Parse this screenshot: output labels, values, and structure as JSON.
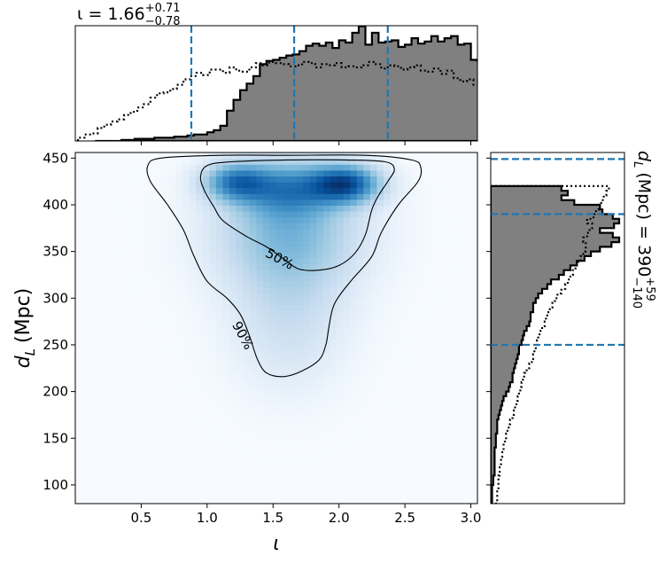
{
  "chart_data": [
    {
      "type": "histogram",
      "panel": "top-marginal",
      "title_text": "ι = 1.66",
      "title_value": "1.66",
      "title_upper": "+0.71",
      "title_lower": "−0.78",
      "x_variable": "ι",
      "xlim": [
        0.0,
        3.05
      ],
      "quantile_lines": [
        0.88,
        1.66,
        2.37
      ],
      "bin_edges_start": 0.15,
      "bin_width": 0.05,
      "posterior_counts": [
        0,
        0,
        0,
        0,
        1,
        1,
        2,
        2,
        2,
        3,
        3,
        3,
        4,
        4,
        5,
        6,
        6,
        8,
        10,
        14,
        28,
        38,
        47,
        53,
        60,
        71,
        74,
        75,
        77,
        79,
        80,
        83,
        88,
        90,
        88,
        91,
        86,
        93,
        91,
        100,
        106,
        89,
        100,
        91,
        92,
        93,
        87,
        89,
        95,
        90,
        92,
        97,
        92,
        95,
        97,
        89,
        90,
        75,
        74,
        56,
        56,
        46,
        46,
        44,
        30,
        33,
        31,
        28,
        23,
        21,
        17,
        14,
        11,
        9,
        7,
        4,
        3,
        2,
        1
      ],
      "prior_start": 0.02,
      "prior_counts": [
        3,
        6,
        7,
        12,
        15,
        18,
        20,
        24,
        27,
        31,
        34,
        40,
        44,
        45,
        48,
        52,
        57,
        60,
        63,
        61,
        66,
        66,
        63,
        68,
        65,
        64,
        68,
        72,
        70,
        73,
        72,
        71,
        69,
        70,
        73,
        72,
        68,
        71,
        70,
        72,
        68,
        69,
        68,
        70,
        73,
        71,
        67,
        70,
        69,
        66,
        68,
        70,
        65,
        64,
        67,
        62,
        65,
        58,
        55,
        57,
        52,
        55,
        49,
        46,
        45,
        42,
        38,
        35,
        33,
        30,
        27,
        23,
        20,
        15,
        12,
        9,
        6
      ]
    },
    {
      "type": "heatmap",
      "panel": "joint",
      "xlabel": "ι",
      "ylabel": "d",
      "ylabel_sub": "L",
      "ylabel_unit": "(Mpc)",
      "xlim": [
        0.0,
        3.05
      ],
      "ylim": [
        80,
        456
      ],
      "x_ticks": [
        "0.5",
        "1.0",
        "1.5",
        "2.0",
        "2.5",
        "3.0"
      ],
      "y_ticks": [
        "100",
        "150",
        "200",
        "250",
        "300",
        "350",
        "400",
        "450"
      ],
      "colormap": "Blues",
      "density_modes": [
        {
          "x": 2.05,
          "y": 423,
          "weight": 1.0,
          "sx": 0.18,
          "sy": 14
        },
        {
          "x": 1.22,
          "y": 425,
          "weight": 0.75,
          "sx": 0.17,
          "sy": 14
        },
        {
          "x": 1.62,
          "y": 418,
          "weight": 0.6,
          "sx": 0.25,
          "sy": 20
        },
        {
          "x": 1.62,
          "y": 375,
          "weight": 0.42,
          "sx": 0.38,
          "sy": 40
        },
        {
          "x": 1.62,
          "y": 315,
          "weight": 0.2,
          "sx": 0.32,
          "sy": 48
        },
        {
          "x": 1.62,
          "y": 250,
          "weight": 0.1,
          "sx": 0.28,
          "sy": 42
        }
      ],
      "contours": [
        {
          "label": "50%",
          "label_at": [
            1.55,
            342
          ],
          "label_rotation": 28,
          "points": [
            [
              1.18,
              446
            ],
            [
              1.6,
              448
            ],
            [
              2.05,
              448
            ],
            [
              2.35,
              446
            ],
            [
              2.42,
              438
            ],
            [
              2.37,
              425
            ],
            [
              2.3,
              410
            ],
            [
              2.25,
              395
            ],
            [
              2.2,
              368
            ],
            [
              2.12,
              348
            ],
            [
              2.0,
              335
            ],
            [
              1.85,
              330
            ],
            [
              1.7,
              331
            ],
            [
              1.6,
              340
            ],
            [
              1.45,
              355
            ],
            [
              1.3,
              366
            ],
            [
              1.12,
              383
            ],
            [
              1.05,
              398
            ],
            [
              0.98,
              415
            ],
            [
              0.95,
              430
            ],
            [
              1.0,
              442
            ]
          ]
        },
        {
          "label": "90%",
          "label_at": [
            1.27,
            260
          ],
          "label_rotation": 62,
          "points": [
            [
              0.65,
              450
            ],
            [
              1.1,
              453
            ],
            [
              1.6,
              453
            ],
            [
              2.2,
              453
            ],
            [
              2.55,
              448
            ],
            [
              2.62,
              440
            ],
            [
              2.6,
              425
            ],
            [
              2.45,
              400
            ],
            [
              2.32,
              370
            ],
            [
              2.25,
              345
            ],
            [
              2.1,
              320
            ],
            [
              2.0,
              302
            ],
            [
              1.95,
              288
            ],
            [
              1.92,
              266
            ],
            [
              1.9,
              250
            ],
            [
              1.85,
              234
            ],
            [
              1.72,
              222
            ],
            [
              1.58,
              216
            ],
            [
              1.45,
              220
            ],
            [
              1.38,
              235
            ],
            [
              1.32,
              260
            ],
            [
              1.25,
              283
            ],
            [
              1.15,
              300
            ],
            [
              1.0,
              318
            ],
            [
              0.9,
              345
            ],
            [
              0.82,
              373
            ],
            [
              0.7,
              400
            ],
            [
              0.57,
              425
            ],
            [
              0.55,
              442
            ]
          ]
        }
      ]
    },
    {
      "type": "histogram",
      "panel": "right-marginal",
      "orientation": "horizontal",
      "label_prefix": "d",
      "label_sub": "L",
      "label_text": "(Mpc) = 390",
      "label_upper": "+59",
      "label_lower": "−140",
      "quantile_lines": [
        250,
        390,
        449
      ],
      "bin_edges_start": 80,
      "bin_width": 5,
      "posterior_counts": [
        1,
        1,
        1,
        1,
        2,
        2,
        3,
        3,
        3,
        3,
        3,
        3,
        4,
        4,
        4,
        5,
        5,
        5,
        6,
        7,
        8,
        9,
        10,
        12,
        14,
        15,
        17,
        17,
        18,
        19,
        20,
        21,
        22,
        22,
        24,
        25,
        26,
        28,
        30,
        31,
        31,
        33,
        33,
        35,
        37,
        40,
        44,
        47,
        53,
        57,
        62,
        67,
        73,
        78,
        85,
        94,
        100,
        95,
        85,
        96,
        100,
        95,
        87,
        85,
        65,
        55,
        60,
        55
      ],
      "prior_counts": [
        5,
        5,
        5,
        6,
        6,
        6,
        7,
        7,
        8,
        8,
        9,
        10,
        10,
        11,
        12,
        13,
        14,
        15,
        17,
        18,
        19,
        20,
        21,
        22,
        23,
        24,
        25,
        26,
        28,
        30,
        32,
        33,
        34,
        35,
        36,
        37,
        38,
        40,
        42,
        43,
        44,
        46,
        48,
        50,
        52,
        55,
        58,
        60,
        62,
        64,
        66,
        68,
        70,
        72,
        74,
        74,
        72,
        75,
        77,
        79,
        75,
        80,
        82,
        84,
        86,
        88,
        90,
        92
      ]
    }
  ]
}
